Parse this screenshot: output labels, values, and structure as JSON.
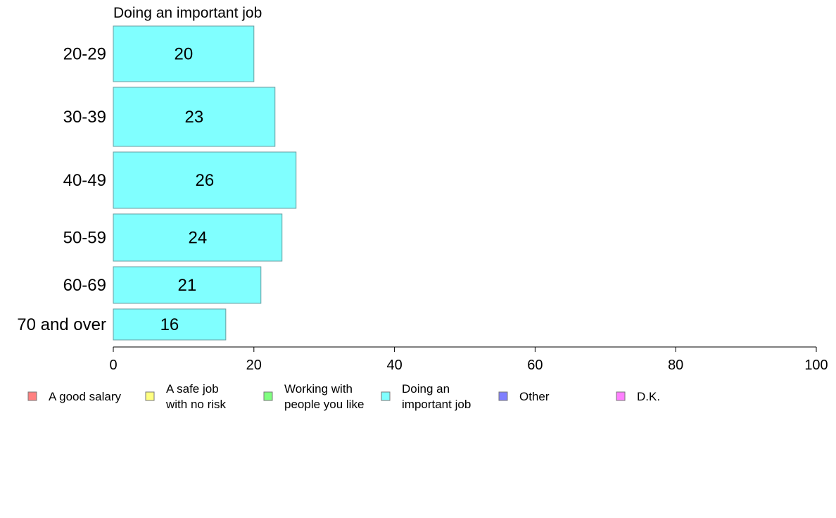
{
  "chart_data": {
    "type": "bar",
    "orientation": "horizontal",
    "title": "Doing an important job",
    "xlabel": "",
    "ylabel": "",
    "categories": [
      "20-29",
      "30-39",
      "40-49",
      "50-59",
      "60-69",
      "70 and over"
    ],
    "values": [
      20,
      23,
      26,
      24,
      21,
      16
    ],
    "xlim": [
      0,
      100
    ],
    "xticks": [
      0,
      20,
      40,
      60,
      80,
      100
    ],
    "grid": false,
    "bar_color": "#80ffff",
    "bar_stroke": "#6a9ea0",
    "legend": {
      "placement": "bottom",
      "items": [
        {
          "lines": [
            "A good salary"
          ],
          "color": "#ff8080"
        },
        {
          "lines": [
            "A safe job",
            "with no risk"
          ],
          "color": "#ffff80"
        },
        {
          "lines": [
            "Working with",
            "people you like"
          ],
          "color": "#80ff80"
        },
        {
          "lines": [
            "Doing an",
            "important job"
          ],
          "color": "#80ffff"
        },
        {
          "lines": [
            "Other"
          ],
          "color": "#8080ff"
        },
        {
          "lines": [
            "D.K."
          ],
          "color": "#ff80ff"
        }
      ]
    }
  }
}
